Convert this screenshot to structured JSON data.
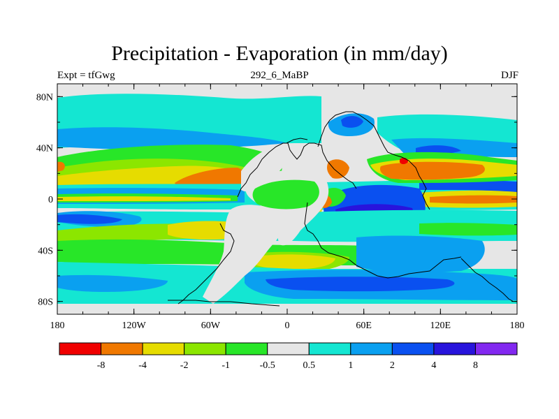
{
  "title": "Precipitation - Evaporation (in mm/day)",
  "subtitle_left": "Expt = tfGwg",
  "subtitle_center": "292_6_MaBP",
  "subtitle_right": "DJF",
  "x_ticks": [
    "180",
    "120W",
    "60W",
    "0",
    "60E",
    "120E",
    "180"
  ],
  "y_ticks": [
    "80N",
    "40N",
    "0",
    "40S",
    "80S"
  ],
  "colorbar": {
    "colors": [
      "#f00000",
      "#f07800",
      "#e6dc00",
      "#8ce600",
      "#28e628",
      "#e6e6e6",
      "#14e6d2",
      "#0aa0f0",
      "#0a50f0",
      "#2814dc",
      "#8228f0"
    ],
    "labels": [
      "-8",
      "-4",
      "-2",
      "-1",
      "-0.5",
      "0.5",
      "1",
      "2",
      "4",
      "8"
    ]
  },
  "palette": {
    "land": "#e6e6e6",
    "coast": "#000000",
    "cyan": "#14e6d2",
    "lightblue": "#0aa0f0",
    "blue": "#0a50f0",
    "darkblue": "#2814dc",
    "green": "#28e628",
    "lightgreen": "#8ce600",
    "yellow": "#e6dc00",
    "orange": "#f07800",
    "red": "#f00000"
  }
}
